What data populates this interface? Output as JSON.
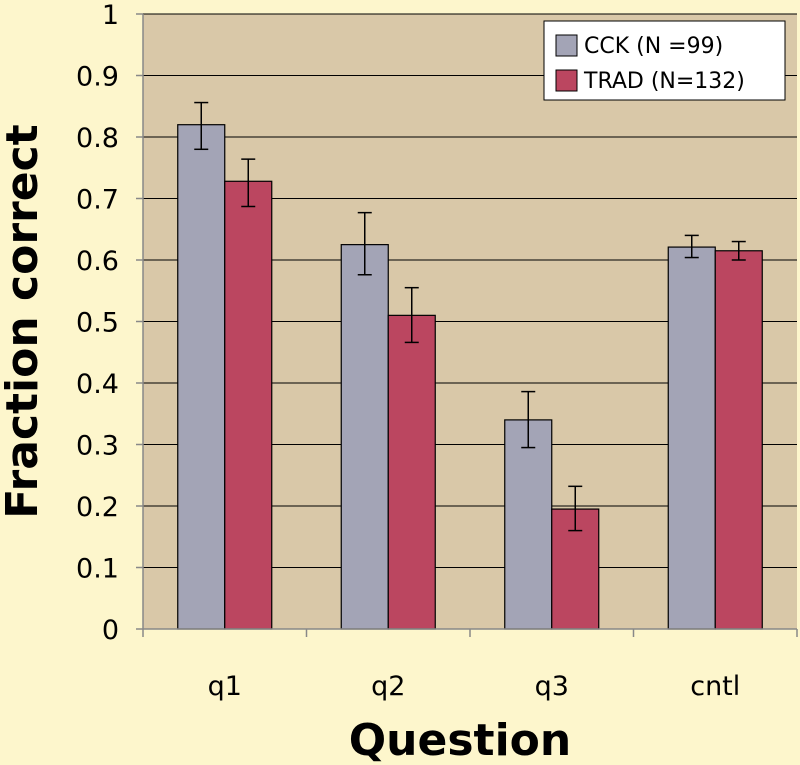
{
  "chart_data": {
    "type": "bar",
    "categories": [
      "q1",
      "q2",
      "q3",
      "cntl"
    ],
    "series": [
      {
        "name": "CCK (N =99)",
        "values": [
          0.82,
          0.625,
          0.34,
          0.621
        ],
        "err_low": [
          0.78,
          0.576,
          0.295,
          0.604
        ],
        "err_high": [
          0.856,
          0.677,
          0.386,
          0.64
        ],
        "color": "#a3a4b6"
      },
      {
        "name": "TRAD (N=132)",
        "values": [
          0.728,
          0.51,
          0.195,
          0.615
        ],
        "err_low": [
          0.687,
          0.466,
          0.16,
          0.6
        ],
        "err_high": [
          0.764,
          0.555,
          0.232,
          0.63
        ],
        "color": "#bb4660"
      }
    ],
    "xlabel": "Question",
    "ylabel": "Fraction correct",
    "ylim": [
      0,
      1
    ],
    "yticks": [
      "0",
      "0.1",
      "0.2",
      "0.3",
      "0.4",
      "0.5",
      "0.6",
      "0.7",
      "0.8",
      "0.9",
      "1"
    ],
    "grid": true,
    "legend_position": "top-right",
    "plot_background": "#d9c8a8",
    "page_background": "#fdf6cc"
  }
}
